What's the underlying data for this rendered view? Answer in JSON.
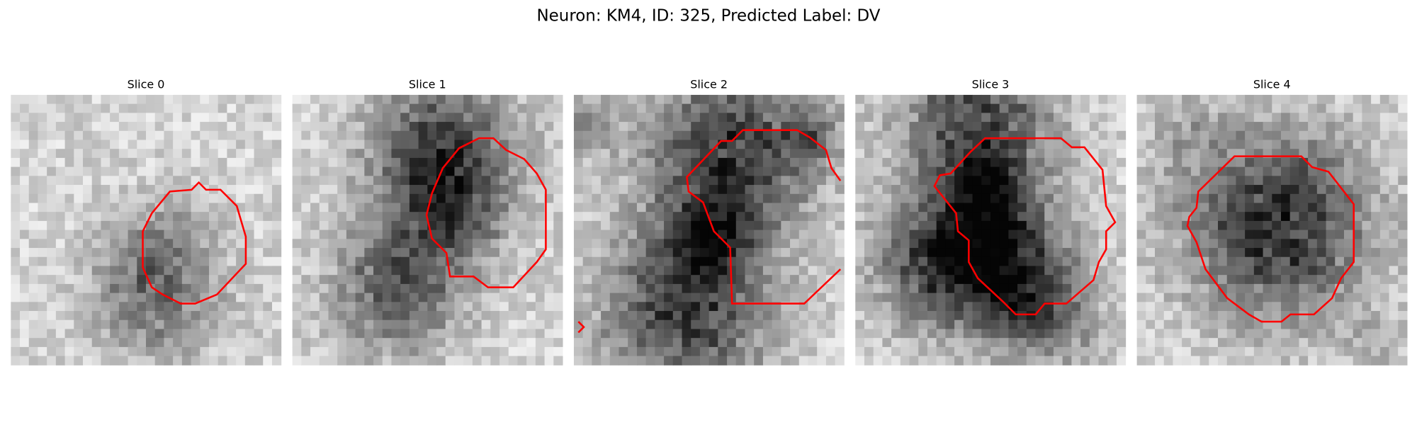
{
  "title": "Neuron: KM4, ID: 325, Predicted Label: DV",
  "panels": [
    {
      "title": "Slice 0"
    },
    {
      "title": "Slice 1"
    },
    {
      "title": "Slice 2"
    },
    {
      "title": "Slice 3"
    },
    {
      "title": "Slice 4"
    }
  ]
}
